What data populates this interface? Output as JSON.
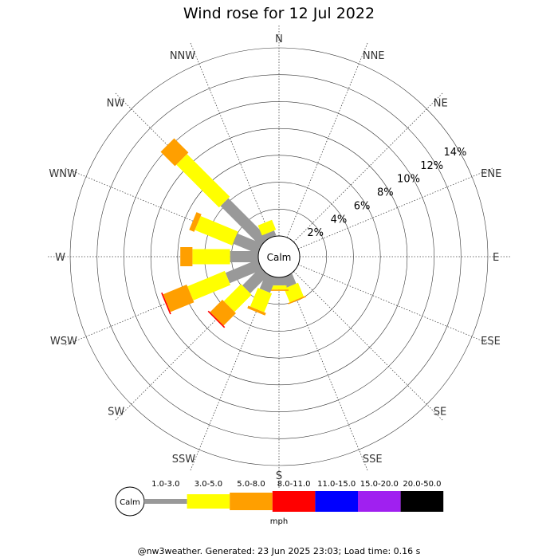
{
  "chart_data": {
    "type": "wind-rose",
    "title": "Wind rose for 12 Jul 2022",
    "directions": [
      "N",
      "NNE",
      "NE",
      "ENE",
      "E",
      "ESE",
      "SE",
      "SSE",
      "S",
      "SSW",
      "SW",
      "WSW",
      "W",
      "WNW",
      "NW",
      "NNW"
    ],
    "ring_labels": [
      "2%",
      "4%",
      "6%",
      "8%",
      "10%",
      "12%",
      "14%"
    ],
    "radial_max_percent": 14,
    "calm_label": "Calm",
    "unit": "mph",
    "speed_bins": [
      "1.0-3.0",
      "3.0-5.0",
      "5.0-8.0",
      "8.0-11.0",
      "11.0-15.0",
      "15.0-20.0",
      "20.0-50.0"
    ],
    "bin_colors": [
      "#999999",
      "#ffff00",
      "#ff9f00",
      "#ff0000",
      "#0000ff",
      "#a020f0",
      "#000000"
    ],
    "series": [
      {
        "direction": "N",
        "values": [
          0,
          0,
          0,
          0,
          0,
          0,
          0
        ]
      },
      {
        "direction": "NNE",
        "values": [
          0,
          0,
          0,
          0,
          0,
          0,
          0
        ]
      },
      {
        "direction": "NE",
        "values": [
          0,
          0,
          0,
          0,
          0,
          0,
          0
        ]
      },
      {
        "direction": "ENE",
        "values": [
          0,
          0,
          0,
          0,
          0,
          0,
          0
        ]
      },
      {
        "direction": "E",
        "values": [
          0,
          0,
          0,
          0,
          0,
          0,
          0
        ]
      },
      {
        "direction": "ESE",
        "values": [
          0,
          0,
          0,
          0,
          0,
          0,
          0
        ]
      },
      {
        "direction": "SE",
        "values": [
          0,
          0,
          0,
          0,
          0,
          0,
          0
        ]
      },
      {
        "direction": "SSE",
        "values": [
          0.8,
          1.1,
          0.1,
          0,
          0,
          0,
          0
        ]
      },
      {
        "direction": "S",
        "values": [
          0.6,
          0.3,
          0.1,
          0,
          0,
          0,
          0
        ]
      },
      {
        "direction": "SSW",
        "values": [
          1.2,
          1.5,
          0.2,
          0,
          0,
          0,
          0
        ]
      },
      {
        "direction": "SW",
        "values": [
          1.9,
          1.8,
          1.3,
          0.1,
          0,
          0,
          0
        ]
      },
      {
        "direction": "WSW",
        "values": [
          2.6,
          3.0,
          1.9,
          0.1,
          0,
          0,
          0
        ]
      },
      {
        "direction": "W",
        "values": [
          2.1,
          2.8,
          0.9,
          0,
          0,
          0,
          0
        ]
      },
      {
        "direction": "WNW",
        "values": [
          2.0,
          3.0,
          0.4,
          0,
          0,
          0,
          0
        ]
      },
      {
        "direction": "NW",
        "values": [
          4.2,
          4.5,
          1.5,
          0,
          0,
          0,
          0
        ]
      },
      {
        "direction": "NNW",
        "values": [
          0.4,
          0.8,
          0,
          0,
          0,
          0,
          0
        ]
      }
    ]
  },
  "footer": "@nw3weather. Generated: 23 Jun 2025 23:03; Load time: 0.16 s"
}
